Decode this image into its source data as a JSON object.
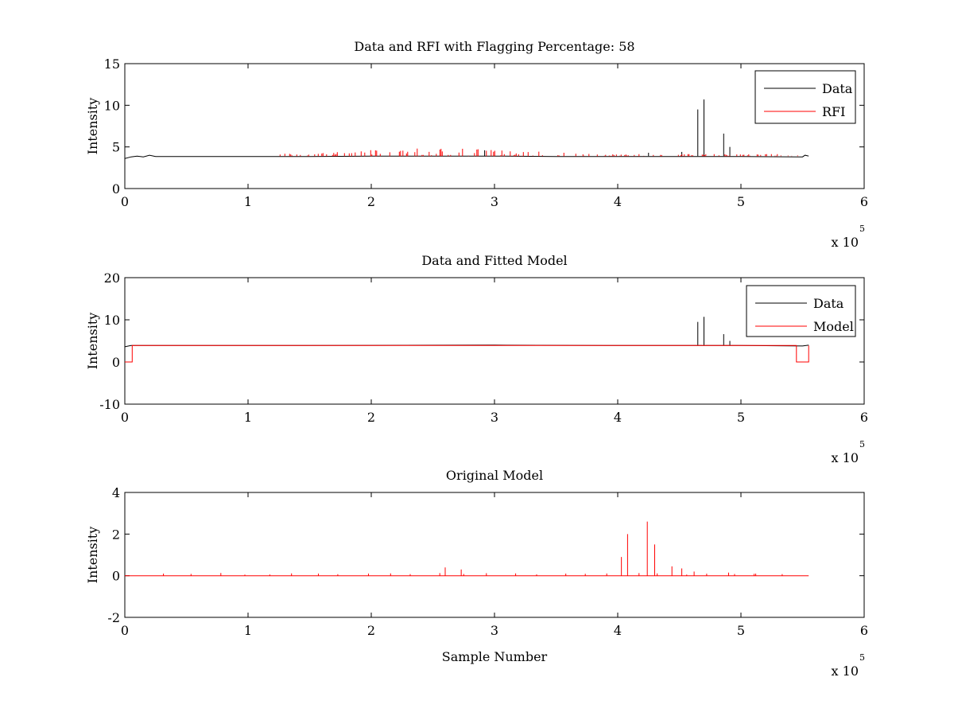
{
  "chart_data": [
    {
      "type": "line",
      "title": "Data and RFI with Flagging Percentage: 58",
      "xlabel": "",
      "ylabel": "Intensity",
      "xlim": [
        0,
        6
      ],
      "ylim": [
        0,
        15
      ],
      "xticks": [
        0,
        1,
        2,
        3,
        4,
        5,
        6
      ],
      "yticks": [
        0,
        5,
        10,
        15
      ],
      "x_multiplier": "x 10",
      "x_multiplier_exp": "5",
      "legend": {
        "position": "top-right",
        "entries": [
          {
            "name": "Data",
            "color": "#000000"
          },
          {
            "name": "RFI",
            "color": "#ff0000"
          }
        ]
      },
      "series": [
        {
          "name": "Data",
          "color": "#000000",
          "x": [
            0,
            0.05,
            0.1,
            0.15,
            0.2,
            0.25,
            0.5,
            1.0,
            1.5,
            2.0,
            2.5,
            3.0,
            3.5,
            4.0,
            4.5,
            5.0,
            5.5,
            5.52,
            5.55
          ],
          "y": [
            3.6,
            3.8,
            3.9,
            3.8,
            4.0,
            3.85,
            3.85,
            3.85,
            3.85,
            3.9,
            3.9,
            3.9,
            3.85,
            3.85,
            3.85,
            3.85,
            3.8,
            4.0,
            3.9
          ],
          "spikes": [
            [
              4.65,
              9.5
            ],
            [
              4.7,
              10.7
            ],
            [
              4.86,
              6.6
            ],
            [
              4.91,
              5.0
            ],
            [
              4.25,
              4.3
            ],
            [
              4.52,
              4.4
            ],
            [
              2.92,
              4.6
            ]
          ]
        },
        {
          "name": "RFI",
          "color": "#ff0000",
          "x_range": [
            1.25,
            5.5
          ],
          "y_range": [
            3.9,
            5.0
          ]
        }
      ]
    },
    {
      "type": "line",
      "title": "Data and Fitted Model",
      "xlabel": "",
      "ylabel": "Intensity",
      "xlim": [
        0,
        6
      ],
      "ylim": [
        -10,
        20
      ],
      "xticks": [
        0,
        1,
        2,
        3,
        4,
        5,
        6
      ],
      "yticks": [
        -10,
        0,
        10,
        20
      ],
      "x_multiplier": "x 10",
      "x_multiplier_exp": "5",
      "legend": {
        "position": "top-right",
        "entries": [
          {
            "name": "Data",
            "color": "#000000"
          },
          {
            "name": "Model",
            "color": "#ff0000"
          }
        ]
      },
      "series": [
        {
          "name": "Data",
          "color": "#000000",
          "x": [
            0,
            0.05,
            0.1,
            1.0,
            2.0,
            3.0,
            4.0,
            5.0,
            5.5,
            5.55
          ],
          "y": [
            3.6,
            3.9,
            3.9,
            3.9,
            3.95,
            4.0,
            3.9,
            3.9,
            3.8,
            4.0
          ],
          "spikes": [
            [
              4.65,
              9.5
            ],
            [
              4.7,
              10.7
            ],
            [
              4.86,
              6.6
            ],
            [
              4.91,
              5.0
            ]
          ]
        },
        {
          "name": "Model",
          "color": "#ff0000",
          "x": [
            0,
            0.06,
            0.06,
            0.1,
            5.45,
            5.45,
            5.55,
            5.55
          ],
          "y": [
            0,
            0,
            3.9,
            3.9,
            3.9,
            0,
            0,
            3.9
          ]
        }
      ]
    },
    {
      "type": "line",
      "title": "Original Model",
      "xlabel": "Sample Number",
      "ylabel": "Intensity",
      "xlim": [
        0,
        6
      ],
      "ylim": [
        -2,
        4
      ],
      "xticks": [
        0,
        1,
        2,
        3,
        4,
        5,
        6
      ],
      "yticks": [
        -2,
        0,
        2,
        4
      ],
      "x_multiplier": "x 10",
      "x_multiplier_exp": "5",
      "series": [
        {
          "name": "",
          "color": "#ff0000",
          "x": [
            0,
            5.55
          ],
          "y": [
            0,
            0
          ],
          "spikes": [
            [
              4.03,
              0.9
            ],
            [
              4.08,
              2.0
            ],
            [
              4.24,
              2.6
            ],
            [
              4.3,
              1.5
            ],
            [
              2.6,
              0.4
            ],
            [
              2.73,
              0.3
            ],
            [
              4.44,
              0.45
            ],
            [
              4.52,
              0.35
            ],
            [
              4.62,
              0.2
            ],
            [
              4.9,
              0.15
            ],
            [
              5.12,
              0.1
            ]
          ]
        }
      ]
    }
  ]
}
